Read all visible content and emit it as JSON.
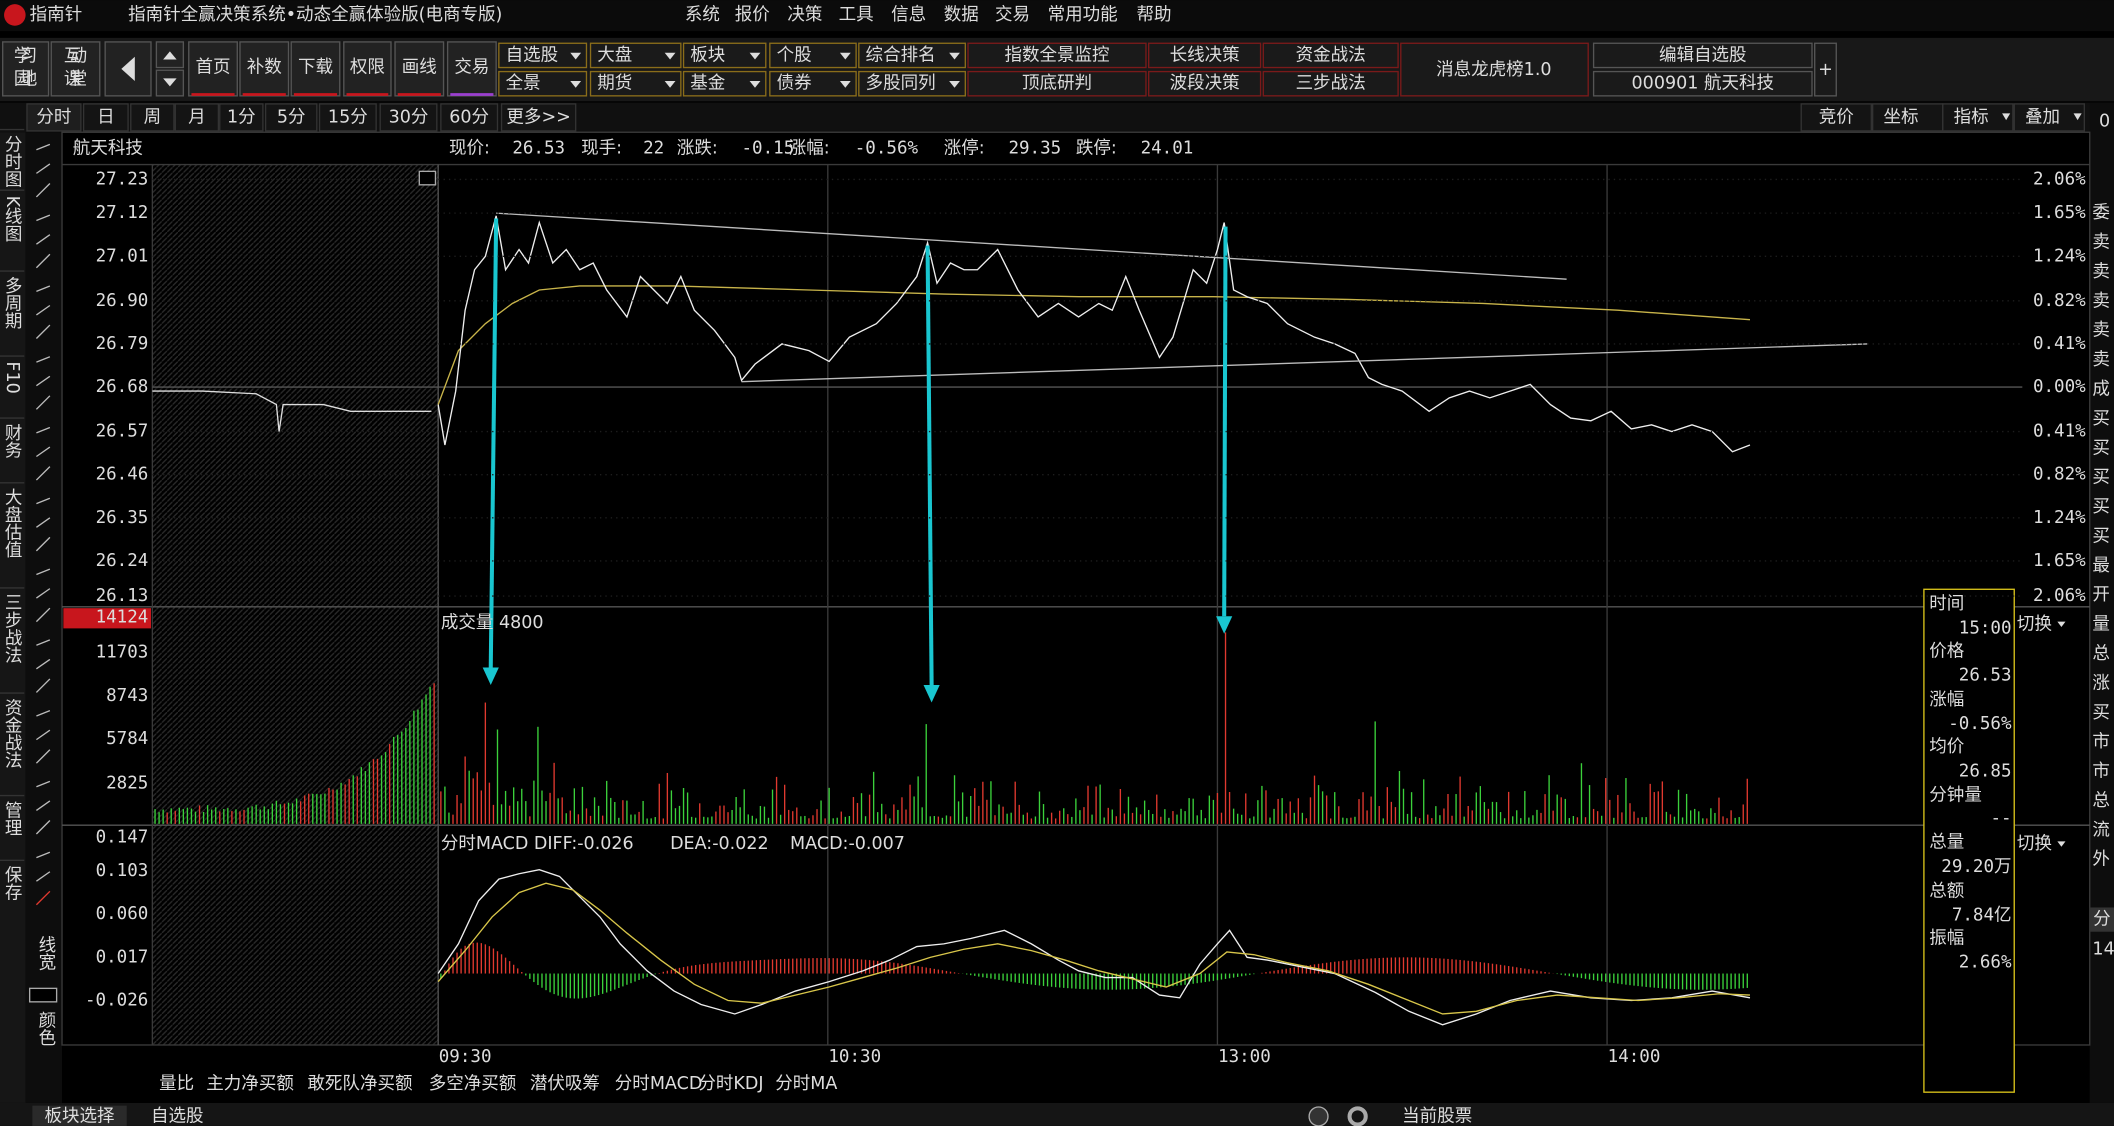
{
  "title_bar": {
    "logo": "指南针",
    "title": "指南针全赢决策系统•动态全赢体验版(电商专版)",
    "menu": [
      "系统",
      "报价",
      "决策",
      "工具",
      "信息",
      "数据",
      "交易",
      "常用功能",
      "帮助"
    ]
  },
  "toolbar": {
    "buttons": [
      "学习园地",
      "互动课堂",
      "首页",
      "补数",
      "下载",
      "权限",
      "画线",
      "交易"
    ],
    "dropdowns": [
      [
        "自选股",
        "大盘",
        "板块",
        "个股",
        "综合排名"
      ],
      [
        "全景",
        "期货",
        "基金",
        "债券",
        "多股同列"
      ]
    ],
    "features": [
      [
        "指数全景监控",
        "长线决策",
        "资金战法"
      ],
      [
        "顶底研判",
        "波段决策",
        "三步战法"
      ]
    ],
    "news": "消息龙虎榜1.0",
    "edit": "编辑自选股",
    "stock": "000901 航天科技",
    "plus": "+"
  },
  "periods": [
    "分时",
    "日",
    "周",
    "月",
    "1分",
    "5分",
    "15分",
    "30分",
    "60分",
    "更多>>"
  ],
  "chart_tools": [
    "竞价",
    "坐标",
    "指标",
    "叠加"
  ],
  "sidebar": [
    "分时图",
    "K线图",
    "多周期",
    "F10",
    "财务",
    "大盘估值",
    "三步战法",
    "资金战法",
    "管理",
    "保存"
  ],
  "draw_tool_labels": [
    "线宽",
    "颜色"
  ],
  "quote": {
    "name": "航天科技",
    "fields": [
      {
        "label": "现价:",
        "value": "26.53"
      },
      {
        "label": "现手:",
        "value": "22"
      },
      {
        "label": "涨跌:",
        "value": "-0.15"
      },
      {
        "label": "涨幅:",
        "value": "-0.56%"
      },
      {
        "label": "涨停:",
        "value": "29.35"
      },
      {
        "label": "跌停:",
        "value": "24.01"
      }
    ]
  },
  "price_axis": [
    "27.23",
    "27.12",
    "27.01",
    "26.90",
    "26.79",
    "26.68",
    "26.57",
    "26.46",
    "26.35",
    "26.24",
    "26.13"
  ],
  "pct_axis": [
    "2.06%",
    "1.65%",
    "1.24%",
    "0.82%",
    "0.41%",
    "0.00%",
    "0.41%",
    "0.82%",
    "1.24%",
    "1.65%",
    "2.06%"
  ],
  "volume_axis": [
    "14124",
    "11703",
    "8743",
    "5784",
    "2825"
  ],
  "volume_title": "成交量 4800",
  "macd_axis": [
    "0.147",
    "0.103",
    "0.060",
    "0.017",
    "-0.026"
  ],
  "macd_title": [
    "分时MACD",
    "DIFF:-0.026",
    "DEA:-0.022",
    "MACD:-0.007"
  ],
  "time_axis": [
    "09:30",
    "10:30",
    "13:00",
    "14:00"
  ],
  "indicator_tabs": [
    "量比",
    "主力净买额",
    "敢死队净买额",
    "多空净买额",
    "潜伏吸筹",
    "分时MACD",
    "分时KDJ",
    "分时MA"
  ],
  "status": [
    "板块选择",
    "自选股",
    "当前股票"
  ],
  "info_box": {
    "rows": [
      {
        "label": "时间",
        "value": "15:00"
      },
      {
        "label": "价格",
        "value": "26.53"
      },
      {
        "label": "涨幅",
        "value": "-0.56%"
      },
      {
        "label": "均价",
        "value": "26.85"
      },
      {
        "label": "分钟量",
        "value": "--"
      },
      {
        "label": "总量",
        "value": "29.20万"
      },
      {
        "label": "总额",
        "value": "7.84亿"
      },
      {
        "label": "振幅",
        "value": "2.66%"
      }
    ],
    "switch": "切换"
  },
  "right_panel": {
    "top": "0",
    "chars": [
      "委",
      "卖",
      "卖",
      "卖",
      "卖",
      "卖",
      "成",
      "买",
      "买",
      "买",
      "买",
      "买",
      "最",
      "开",
      "量",
      "总",
      "涨",
      "买",
      "市",
      "市",
      "总",
      "流",
      "外"
    ],
    "tab": "分",
    "bottom": "14"
  }
}
